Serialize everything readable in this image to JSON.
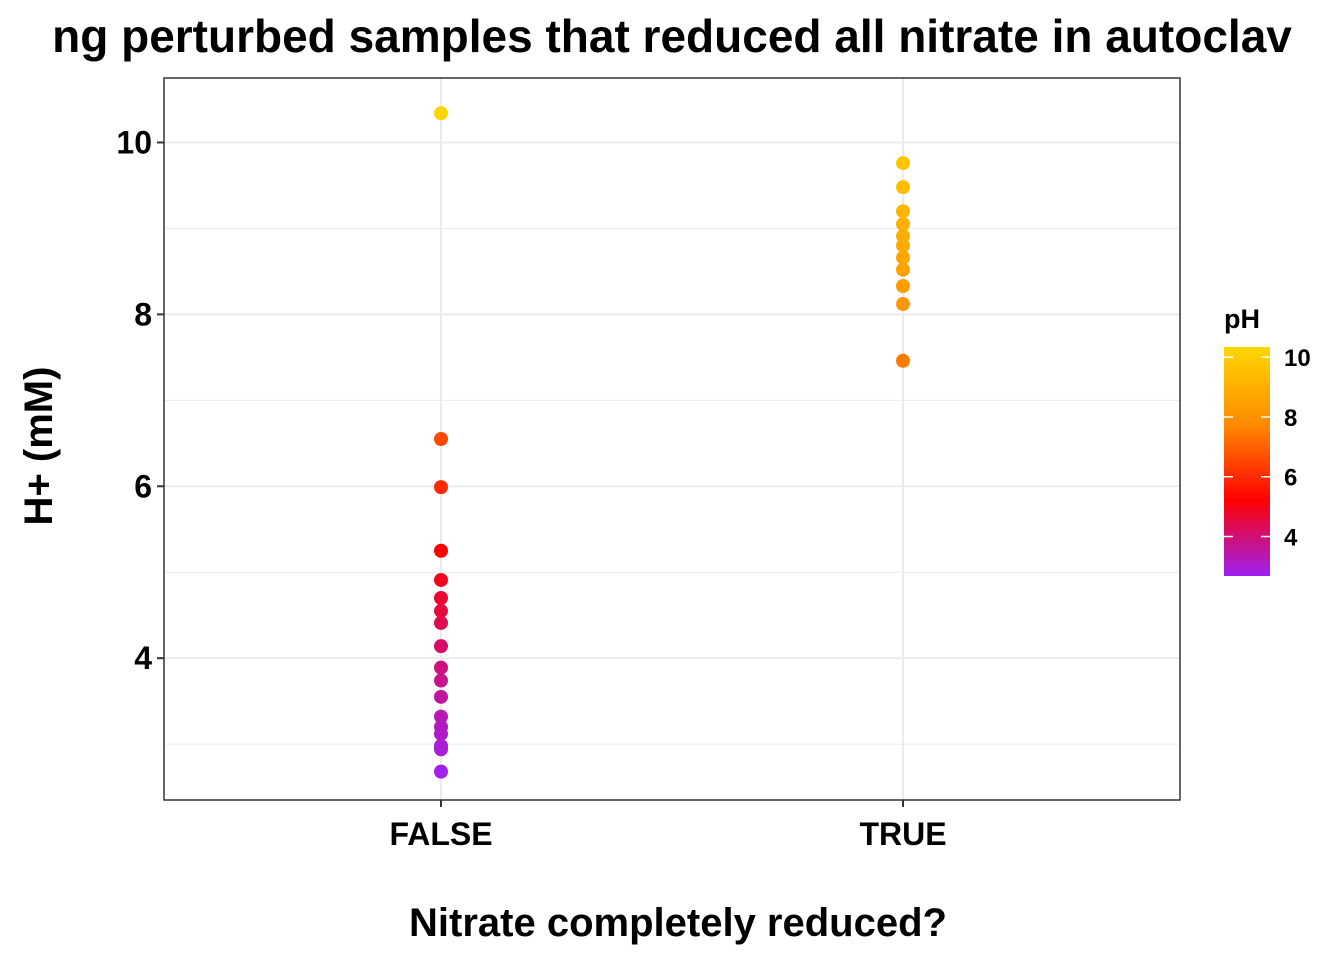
{
  "chart_data": {
    "type": "scatter",
    "title": "ng perturbed samples that reduced all nitrate in autoclav",
    "xlabel": "Nitrate completely reduced?",
    "ylabel": "H+ (mM)",
    "categories": [
      "FALSE",
      "TRUE"
    ],
    "y_ticks": [
      "4",
      "6",
      "8",
      "10"
    ],
    "ylim": [
      2.35,
      10.75
    ],
    "grid": true,
    "points": [
      {
        "x": "FALSE",
        "y": 10.34,
        "color_value": 10.34
      },
      {
        "x": "FALSE",
        "y": 6.55,
        "color_value": 6.55
      },
      {
        "x": "FALSE",
        "y": 5.99,
        "color_value": 5.99
      },
      {
        "x": "FALSE",
        "y": 5.25,
        "color_value": 5.25
      },
      {
        "x": "FALSE",
        "y": 4.91,
        "color_value": 4.91
      },
      {
        "x": "FALSE",
        "y": 4.7,
        "color_value": 4.7
      },
      {
        "x": "FALSE",
        "y": 4.55,
        "color_value": 4.55
      },
      {
        "x": "FALSE",
        "y": 4.41,
        "color_value": 4.41
      },
      {
        "x": "FALSE",
        "y": 4.14,
        "color_value": 4.14
      },
      {
        "x": "FALSE",
        "y": 3.89,
        "color_value": 3.89
      },
      {
        "x": "FALSE",
        "y": 3.74,
        "color_value": 3.74
      },
      {
        "x": "FALSE",
        "y": 3.55,
        "color_value": 3.55
      },
      {
        "x": "FALSE",
        "y": 3.32,
        "color_value": 3.32
      },
      {
        "x": "FALSE",
        "y": 3.2,
        "color_value": 3.2
      },
      {
        "x": "FALSE",
        "y": 3.12,
        "color_value": 3.12
      },
      {
        "x": "FALSE",
        "y": 2.98,
        "color_value": 2.98
      },
      {
        "x": "FALSE",
        "y": 2.94,
        "color_value": 2.94
      },
      {
        "x": "FALSE",
        "y": 2.68,
        "color_value": 2.68
      },
      {
        "x": "TRUE",
        "y": 9.76,
        "color_value": 9.76
      },
      {
        "x": "TRUE",
        "y": 9.48,
        "color_value": 9.48
      },
      {
        "x": "TRUE",
        "y": 9.2,
        "color_value": 9.2
      },
      {
        "x": "TRUE",
        "y": 9.05,
        "color_value": 9.05
      },
      {
        "x": "TRUE",
        "y": 8.91,
        "color_value": 8.91
      },
      {
        "x": "TRUE",
        "y": 8.8,
        "color_value": 8.8
      },
      {
        "x": "TRUE",
        "y": 8.66,
        "color_value": 8.66
      },
      {
        "x": "TRUE",
        "y": 8.52,
        "color_value": 8.52
      },
      {
        "x": "TRUE",
        "y": 8.33,
        "color_value": 8.33
      },
      {
        "x": "TRUE",
        "y": 8.12,
        "color_value": 8.12
      },
      {
        "x": "TRUE",
        "y": 7.46,
        "color_value": 7.46
      }
    ],
    "legend": {
      "title": "pH",
      "position": "right",
      "range": [
        2.68,
        10.34
      ],
      "ticks": [
        "4",
        "6",
        "8",
        "10"
      ],
      "colors": [
        "#A020F0",
        "#FF0000",
        "#FF8C00",
        "#FFD700"
      ]
    }
  },
  "colors": {
    "grid": "#EBEBEB",
    "panel_border": "#333333",
    "background": "#FFFFFF"
  }
}
